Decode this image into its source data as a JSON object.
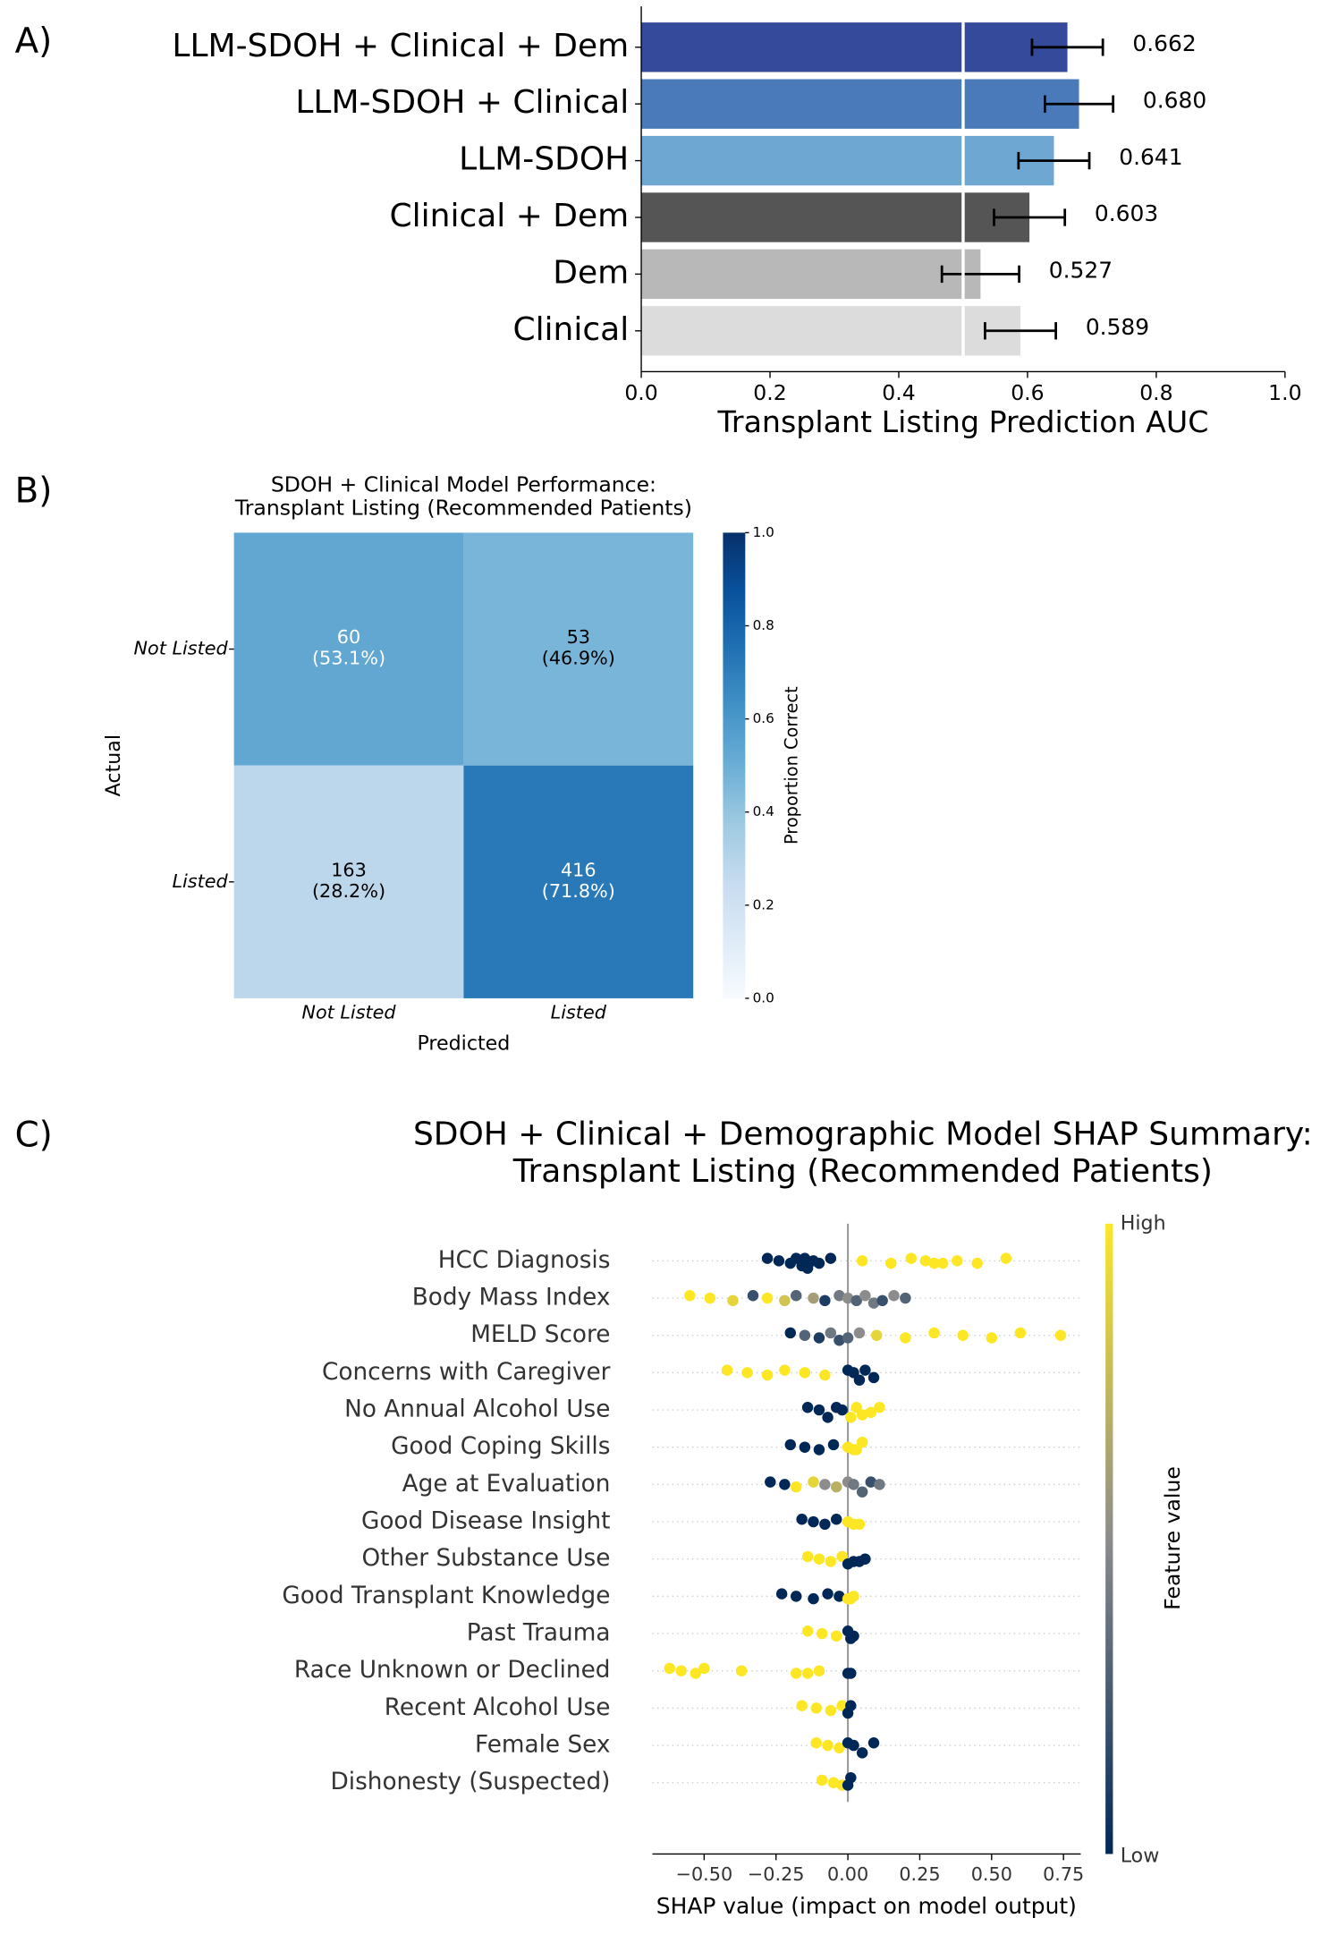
{
  "chart_data": [
    {
      "type": "bar",
      "orientation": "horizontal",
      "panel_label": "A)",
      "categories": [
        "LLM-SDOH + Clinical + Dem",
        "LLM-SDOH + Clinical",
        "LLM-SDOH",
        "Clinical + Dem",
        "Dem",
        "Clinical"
      ],
      "values": [
        0.662,
        0.68,
        0.641,
        0.603,
        0.527,
        0.589
      ],
      "value_labels": [
        "0.662",
        "0.680",
        "0.641",
        "0.603",
        "0.527",
        "0.589"
      ],
      "errors": [
        0.055,
        0.053,
        0.055,
        0.055,
        0.06,
        0.055
      ],
      "colors": [
        "#354a9a",
        "#4a7ab9",
        "#6ea7d1",
        "#555555",
        "#b8b8b8",
        "#dcdcdc"
      ],
      "xlim": [
        0,
        1
      ],
      "xticks": [
        {
          "value": 0,
          "label": "0.0"
        },
        {
          "value": 0.2,
          "label": "0.2"
        },
        {
          "value": 0.4,
          "label": "0.4"
        },
        {
          "value": 0.6,
          "label": "0.6"
        },
        {
          "value": 0.8,
          "label": "0.8"
        },
        {
          "value": 1,
          "label": "1.0"
        }
      ],
      "xlabel": "Transplant Listing Prediction AUC",
      "reference_line": 0.5
    },
    {
      "type": "heatmap",
      "panel_label": "B)",
      "title": [
        "SDOH + Clinical Model Performance:",
        "Transplant Listing (Recommended Patients)"
      ],
      "row_labels": [
        "Not Listed",
        "Listed"
      ],
      "col_labels": [
        "Not Listed",
        "Listed"
      ],
      "values": [
        [
          0.531,
          0.469
        ],
        [
          0.282,
          0.718
        ]
      ],
      "counts": [
        [
          60,
          53
        ],
        [
          163,
          416
        ]
      ],
      "value_labels": [
        [
          "(53.1%)",
          "(46.9%)"
        ],
        [
          "(28.2%)",
          "(71.8%)"
        ]
      ],
      "xlabel": "Predicted",
      "ylabel": "Actual",
      "colormap": "Blues",
      "colorbar": {
        "label": "Proportion Correct",
        "lim": [
          0,
          1
        ],
        "ticks": [
          {
            "value": 0,
            "label": "0.0"
          },
          {
            "value": 0.2,
            "label": "0.2"
          },
          {
            "value": 0.4,
            "label": "0.4"
          },
          {
            "value": 0.6,
            "label": "0.6"
          },
          {
            "value": 0.8,
            "label": "0.8"
          },
          {
            "value": 1,
            "label": "1.0"
          }
        ]
      }
    },
    {
      "type": "beeswarm",
      "panel_label": "C)",
      "title": [
        "SDOH + Clinical + Demographic Model SHAP Summary:",
        "Transplant Listing (Recommended Patients)"
      ],
      "xlim": [
        -0.68,
        0.81
      ],
      "xticks": [
        {
          "value": -0.5,
          "label": "−0.50"
        },
        {
          "value": -0.25,
          "label": "−0.25"
        },
        {
          "value": 0,
          "label": "0.00"
        },
        {
          "value": 0.25,
          "label": "0.25"
        },
        {
          "value": 0.5,
          "label": "0.50"
        },
        {
          "value": 0.75,
          "label": "0.75"
        }
      ],
      "xlabel": "SHAP value (impact on model output)",
      "colors": [
        "#002857",
        "#8c8c8c",
        "#fde725"
      ],
      "colorbar": {
        "label": "Feature value",
        "high": "High",
        "low": "Low"
      },
      "features": [
        {
          "name": "HCC Diagnosis",
          "points": [
            [
              -0.28,
              0
            ],
            [
              -0.24,
              0
            ],
            [
              -0.2,
              0
            ],
            [
              -0.18,
              0
            ],
            [
              -0.16,
              0
            ],
            [
              -0.15,
              0
            ],
            [
              -0.14,
              0
            ],
            [
              -0.12,
              0
            ],
            [
              -0.1,
              0
            ],
            [
              -0.06,
              0
            ],
            [
              0.05,
              1
            ],
            [
              0.15,
              1
            ],
            [
              0.22,
              1
            ],
            [
              0.27,
              1
            ],
            [
              0.3,
              1
            ],
            [
              0.33,
              1
            ],
            [
              0.38,
              1
            ],
            [
              0.45,
              1
            ],
            [
              0.55,
              1
            ]
          ]
        },
        {
          "name": "Body Mass Index",
          "points": [
            [
              -0.55,
              1
            ],
            [
              -0.48,
              1
            ],
            [
              -0.4,
              0.9
            ],
            [
              -0.33,
              0.2
            ],
            [
              -0.28,
              1
            ],
            [
              -0.22,
              0.8
            ],
            [
              -0.18,
              0.3
            ],
            [
              -0.12,
              0.6
            ],
            [
              -0.08,
              0.1
            ],
            [
              -0.03,
              0.4
            ],
            [
              0.0,
              0.5
            ],
            [
              0.03,
              0.3
            ],
            [
              0.06,
              0.5
            ],
            [
              0.09,
              0.4
            ],
            [
              0.12,
              0.2
            ],
            [
              0.16,
              0.5
            ],
            [
              0.2,
              0.3
            ]
          ]
        },
        {
          "name": "MELD Score",
          "points": [
            [
              -0.2,
              0
            ],
            [
              -0.15,
              0.3
            ],
            [
              -0.1,
              0.1
            ],
            [
              -0.06,
              0.4
            ],
            [
              -0.03,
              0.2
            ],
            [
              0.0,
              0.3
            ],
            [
              0.04,
              0.5
            ],
            [
              0.1,
              0.9
            ],
            [
              0.2,
              1
            ],
            [
              0.3,
              1
            ],
            [
              0.4,
              1
            ],
            [
              0.5,
              1
            ],
            [
              0.6,
              1
            ],
            [
              0.74,
              1
            ]
          ]
        },
        {
          "name": "Concerns with Caregiver",
          "points": [
            [
              -0.42,
              1
            ],
            [
              -0.35,
              1
            ],
            [
              -0.28,
              1
            ],
            [
              -0.22,
              1
            ],
            [
              -0.15,
              1
            ],
            [
              -0.08,
              1
            ],
            [
              0.0,
              0
            ],
            [
              0.02,
              0
            ],
            [
              0.04,
              0
            ],
            [
              0.06,
              0
            ],
            [
              0.09,
              0
            ]
          ]
        },
        {
          "name": "No Annual Alcohol Use",
          "points": [
            [
              -0.14,
              0
            ],
            [
              -0.1,
              0
            ],
            [
              -0.07,
              0
            ],
            [
              -0.04,
              0
            ],
            [
              -0.02,
              0
            ],
            [
              0.01,
              1
            ],
            [
              0.03,
              1
            ],
            [
              0.05,
              1
            ],
            [
              0.08,
              1
            ],
            [
              0.11,
              1
            ]
          ]
        },
        {
          "name": "Good Coping Skills",
          "points": [
            [
              -0.2,
              0
            ],
            [
              -0.15,
              0
            ],
            [
              -0.1,
              0
            ],
            [
              -0.05,
              0
            ],
            [
              0.0,
              1
            ],
            [
              0.02,
              1
            ],
            [
              0.03,
              1
            ],
            [
              0.05,
              1
            ]
          ]
        },
        {
          "name": "Age at Evaluation",
          "points": [
            [
              -0.27,
              0
            ],
            [
              -0.22,
              0
            ],
            [
              -0.18,
              1
            ],
            [
              -0.12,
              0.9
            ],
            [
              -0.08,
              0.5
            ],
            [
              -0.04,
              0.7
            ],
            [
              0.0,
              0.5
            ],
            [
              0.02,
              0.4
            ],
            [
              0.05,
              0.3
            ],
            [
              0.08,
              0.2
            ],
            [
              0.11,
              0.4
            ]
          ]
        },
        {
          "name": "Good Disease Insight",
          "points": [
            [
              -0.16,
              0
            ],
            [
              -0.12,
              0
            ],
            [
              -0.08,
              0
            ],
            [
              -0.04,
              0
            ],
            [
              0.0,
              1
            ],
            [
              0.02,
              1
            ],
            [
              0.04,
              1
            ]
          ]
        },
        {
          "name": "Other Substance Use",
          "points": [
            [
              -0.14,
              1
            ],
            [
              -0.1,
              1
            ],
            [
              -0.06,
              1
            ],
            [
              -0.02,
              1
            ],
            [
              0.0,
              0
            ],
            [
              0.02,
              0
            ],
            [
              0.04,
              0
            ],
            [
              0.06,
              0
            ]
          ]
        },
        {
          "name": "Good Transplant Knowledge",
          "points": [
            [
              -0.23,
              0
            ],
            [
              -0.18,
              0
            ],
            [
              -0.12,
              0
            ],
            [
              -0.07,
              0
            ],
            [
              -0.03,
              0
            ],
            [
              0.0,
              1
            ],
            [
              0.01,
              1
            ],
            [
              0.02,
              1
            ]
          ]
        },
        {
          "name": "Past Trauma",
          "points": [
            [
              -0.14,
              1
            ],
            [
              -0.09,
              1
            ],
            [
              -0.04,
              1
            ],
            [
              0.0,
              0
            ],
            [
              0.01,
              0
            ],
            [
              0.02,
              0
            ]
          ]
        },
        {
          "name": "Race Unknown or Declined",
          "points": [
            [
              -0.62,
              1
            ],
            [
              -0.58,
              1
            ],
            [
              -0.53,
              1
            ],
            [
              -0.5,
              1
            ],
            [
              -0.37,
              1
            ],
            [
              -0.18,
              1
            ],
            [
              -0.14,
              1
            ],
            [
              -0.1,
              1
            ],
            [
              0.0,
              0
            ],
            [
              0.01,
              0
            ]
          ]
        },
        {
          "name": "Recent Alcohol Use",
          "points": [
            [
              -0.16,
              1
            ],
            [
              -0.11,
              1
            ],
            [
              -0.06,
              1
            ],
            [
              -0.02,
              1
            ],
            [
              0.0,
              0
            ],
            [
              0.01,
              0
            ]
          ]
        },
        {
          "name": "Female Sex",
          "points": [
            [
              -0.11,
              1
            ],
            [
              -0.07,
              1
            ],
            [
              -0.03,
              1
            ],
            [
              0.0,
              0
            ],
            [
              0.02,
              0
            ],
            [
              0.05,
              0
            ],
            [
              0.09,
              0
            ]
          ]
        },
        {
          "name": "Dishonesty (Suspected)",
          "points": [
            [
              -0.09,
              1
            ],
            [
              -0.05,
              1
            ],
            [
              -0.02,
              1
            ],
            [
              0.0,
              0
            ],
            [
              0.01,
              0
            ]
          ]
        }
      ]
    }
  ]
}
